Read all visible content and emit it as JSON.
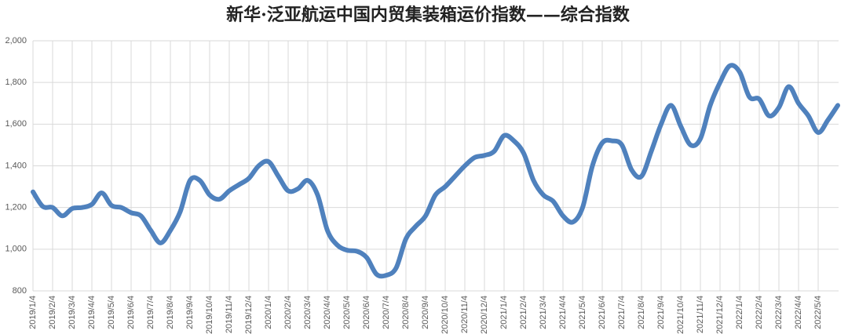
{
  "chart_data": {
    "type": "line",
    "title": "新华·泛亚航运中国内贸集装箱运价指数——综合指数",
    "categories": [
      "2019/1/4",
      null,
      "2019/2/4",
      null,
      "2019/3/4",
      null,
      "2019/4/4",
      null,
      "2019/5/4",
      null,
      "2019/6/4",
      null,
      "2019/7/4",
      null,
      "2019/8/4",
      null,
      "2019/9/4",
      null,
      "2019/10/4",
      null,
      "2019/11/4",
      null,
      "2019/12/4",
      null,
      "2020/1/4",
      null,
      "2020/2/4",
      null,
      "2020/3/4",
      null,
      "2020/4/4",
      null,
      "2020/5/4",
      null,
      "2020/6/4",
      null,
      "2020/7/4",
      null,
      "2020/8/4",
      null,
      "2020/9/4",
      null,
      "2020/10/4",
      null,
      "2020/11/4",
      null,
      "2020/12/4",
      null,
      "2021/1/4",
      null,
      "2021/2/4",
      null,
      "2021/3/4",
      null,
      "2021/4/4",
      null,
      "2021/5/4",
      null,
      "2021/6/4",
      null,
      "2021/7/4",
      null,
      "2021/8/4",
      null,
      "2021/9/4",
      null,
      "2021/10/4",
      null,
      "2021/11/4",
      null,
      "2021/12/4",
      null,
      "2022/1/4",
      null,
      "2022/2/4",
      null,
      "2022/3/4",
      null,
      "2022/4/4",
      null,
      "2022/5/4",
      null,
      null
    ],
    "series": [
      {
        "name": "综合指数",
        "color": "#4f81bd",
        "values": [
          1275,
          1205,
          1200,
          1160,
          1195,
          1200,
          1215,
          1270,
          1210,
          1200,
          1175,
          1160,
          1090,
          1030,
          1090,
          1180,
          1330,
          1330,
          1260,
          1240,
          1280,
          1310,
          1340,
          1400,
          1420,
          1350,
          1280,
          1290,
          1330,
          1260,
          1090,
          1020,
          995,
          990,
          960,
          880,
          875,
          910,
          1050,
          1110,
          1160,
          1260,
          1300,
          1350,
          1400,
          1440,
          1450,
          1470,
          1545,
          1520,
          1460,
          1330,
          1260,
          1230,
          1160,
          1130,
          1200,
          1400,
          1510,
          1520,
          1500,
          1380,
          1350,
          1470,
          1600,
          1690,
          1590,
          1500,
          1530,
          1690,
          1800,
          1880,
          1850,
          1730,
          1720,
          1640,
          1680,
          1780,
          1700,
          1640,
          1560,
          1620,
          1690
        ]
      }
    ],
    "ylim": [
      800,
      2000
    ],
    "yticks": [
      800,
      {
        "value": 1000,
        "label": "1,000"
      },
      {
        "value": 1200,
        "label": "1,200"
      },
      {
        "value": 1400,
        "label": "1,400"
      },
      {
        "value": 1600,
        "label": "1,600"
      },
      {
        "value": 1800,
        "label": "1,800"
      },
      {
        "value": 2000,
        "label": "2,000"
      }
    ],
    "grid": true
  }
}
